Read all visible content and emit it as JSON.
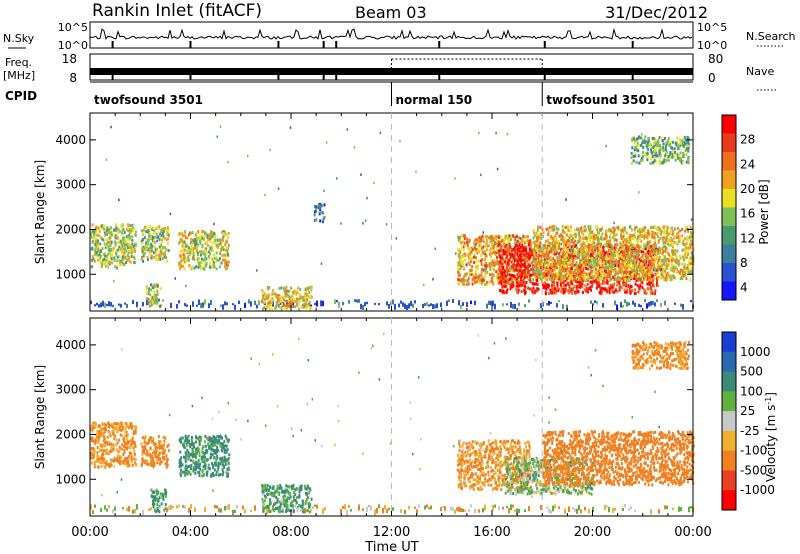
{
  "header": {
    "station": "Rankin Inlet (fitACF)",
    "beam": "Beam 03",
    "date": "31/Dec/2012"
  },
  "top_panel": {
    "left_label": "N.Sky",
    "left_ticks": [
      "10^5",
      "10^0"
    ],
    "right_label": "N.Search",
    "right_ticks": [
      "10^5",
      "10^0"
    ]
  },
  "freq_panel": {
    "left_label_1": "Freq.",
    "left_label_2": "[MHz]",
    "left_ticks": [
      "18",
      "8"
    ],
    "right_label": "Nave",
    "right_ticks": [
      "80",
      "0"
    ]
  },
  "cpid": {
    "label": "CPID",
    "segments": [
      {
        "name": "twofsound 3501",
        "start_hour": 0,
        "end_hour": 12
      },
      {
        "name": "normal 150",
        "start_hour": 12,
        "end_hour": 18
      },
      {
        "name": "twofsound 3501",
        "start_hour": 18,
        "end_hour": 24
      }
    ]
  },
  "chart_data": [
    {
      "type": "heatmap",
      "title": "Power",
      "xlabel": "Time UT",
      "ylabel": "Slant Range [km]",
      "x_ticks": [
        "00:00",
        "04:00",
        "08:00",
        "12:00",
        "16:00",
        "20:00",
        "00:00"
      ],
      "xlim_hours": [
        0,
        24
      ],
      "y_ticks": [
        1000,
        2000,
        3000,
        4000
      ],
      "ylim": [
        180,
        4600
      ],
      "colorbar": {
        "label": "Power [dB]",
        "ticks": [
          "28",
          "24",
          "20",
          "16",
          "12",
          "8",
          "4"
        ],
        "range": [
          0,
          30
        ],
        "colors": [
          "#1515ff",
          "#2850d0",
          "#3c7f9e",
          "#4a9a70",
          "#7fbf5a",
          "#e8e020",
          "#f0a020",
          "#f07020",
          "#e83a1c",
          "#ff0000"
        ]
      },
      "regions": [
        {
          "t0": 0.0,
          "t1": 1.8,
          "r0": 1200,
          "r1": 2150,
          "level": 15
        },
        {
          "t0": 2.0,
          "t1": 3.1,
          "r0": 1300,
          "r1": 2100,
          "level": 14
        },
        {
          "t0": 3.5,
          "t1": 5.5,
          "r0": 1150,
          "r1": 2000,
          "level": 16
        },
        {
          "t0": 2.2,
          "t1": 2.8,
          "r0": 300,
          "r1": 800,
          "level": 14
        },
        {
          "t0": 6.8,
          "t1": 8.8,
          "r0": 250,
          "r1": 750,
          "level": 18
        },
        {
          "t0": 8.9,
          "t1": 9.3,
          "r0": 2200,
          "r1": 2600,
          "level": 8
        },
        {
          "t0": 14.6,
          "t1": 17.5,
          "r0": 800,
          "r1": 1900,
          "level": 20
        },
        {
          "t0": 16.2,
          "t1": 22.6,
          "r0": 600,
          "r1": 1700,
          "level": 27
        },
        {
          "t0": 17.6,
          "t1": 24.0,
          "r0": 900,
          "r1": 2100,
          "level": 18
        },
        {
          "t0": 21.5,
          "t1": 23.8,
          "r0": 3500,
          "r1": 4100,
          "level": 12
        }
      ]
    },
    {
      "type": "heatmap",
      "title": "Velocity",
      "xlabel": "Time UT",
      "ylabel": "Slant Range [km]",
      "x_ticks": [
        "00:00",
        "04:00",
        "08:00",
        "12:00",
        "16:00",
        "20:00",
        "00:00"
      ],
      "xlim_hours": [
        0,
        24
      ],
      "y_ticks": [
        1000,
        2000,
        3000,
        4000
      ],
      "ylim": [
        180,
        4600
      ],
      "colorbar": {
        "label": "Velocity [m s",
        "label_sup": "-1",
        "label_end": "]",
        "ticks": [
          "1000",
          "500",
          "100",
          "25",
          "-25",
          "-100",
          "-500",
          "-1000"
        ],
        "colors": [
          "#1a3fd0",
          "#2a6ab0",
          "#3a8a7a",
          "#60b040",
          "#c8c8c8",
          "#f0b030",
          "#f08020",
          "#e84020",
          "#ff0000"
        ]
      },
      "regions": [
        {
          "t0": 0.0,
          "t1": 1.8,
          "r0": 1300,
          "r1": 2300,
          "level": -120
        },
        {
          "t0": 2.0,
          "t1": 3.1,
          "r0": 1300,
          "r1": 2000,
          "level": -150
        },
        {
          "t0": 3.5,
          "t1": 5.5,
          "r0": 1100,
          "r1": 2000,
          "level": 150
        },
        {
          "t0": 2.4,
          "t1": 3.0,
          "r0": 300,
          "r1": 800,
          "level": 120
        },
        {
          "t0": 6.8,
          "t1": 8.8,
          "r0": 300,
          "r1": 900,
          "level": 100
        },
        {
          "t0": 14.6,
          "t1": 17.5,
          "r0": 800,
          "r1": 1900,
          "level": -110
        },
        {
          "t0": 16.5,
          "t1": 20.0,
          "r0": 700,
          "r1": 1500,
          "level": 40
        },
        {
          "t0": 18.0,
          "t1": 24.0,
          "r0": 900,
          "r1": 2100,
          "level": -200
        },
        {
          "t0": 21.5,
          "t1": 23.8,
          "r0": 3500,
          "r1": 4100,
          "level": -120
        }
      ]
    }
  ]
}
